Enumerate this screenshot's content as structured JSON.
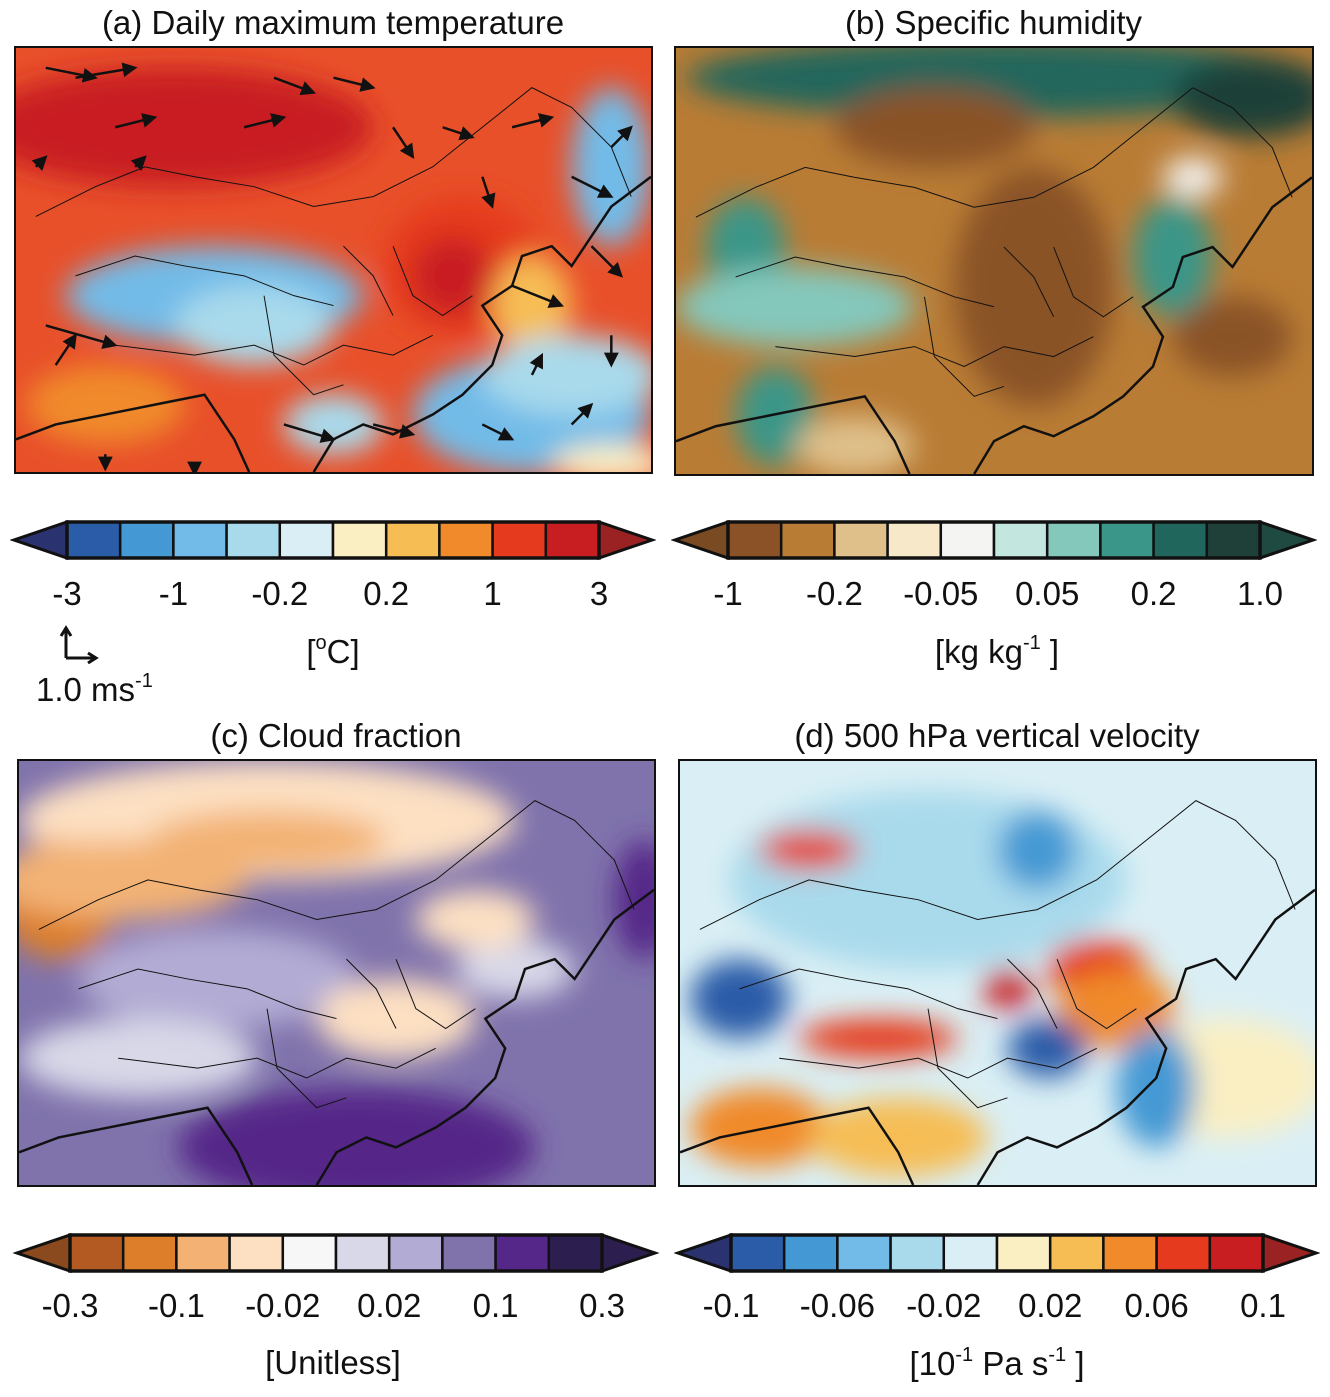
{
  "panels": [
    {
      "id": "a",
      "title": "(a) Daily maximum temperature",
      "unit_open": "[",
      "unit_base": "",
      "unit_sup": "o",
      "unit_rest": "C]",
      "ticks": [
        "-3",
        "-1",
        "-0.2",
        "0.2",
        "1",
        "3"
      ],
      "colors": [
        "#2b3270",
        "#2b5ca8",
        "#4499d4",
        "#72bbe8",
        "#a9daec",
        "#daeff5",
        "#faefc3",
        "#f6bd55",
        "#f08a2a",
        "#e53a1e",
        "#c81e22",
        "#9b2222"
      ],
      "background": "#e8502a"
    },
    {
      "id": "b",
      "title": "(b) Specific humidity",
      "unit_open": "[kg kg",
      "unit_base": "",
      "unit_sup": "-1",
      "unit_rest": " ]",
      "ticks": [
        "-1",
        "-0.2",
        "-0.05",
        "0.05",
        "0.2",
        "1.0"
      ],
      "colors": [
        "#7a4a22",
        "#8a5226",
        "#b97c35",
        "#dfc08a",
        "#f6e8c8",
        "#f4f4f2",
        "#c3e6df",
        "#84c8bc",
        "#3a9688",
        "#21665c",
        "#1f4038",
        "#1e4a42"
      ],
      "background": "#b97c35"
    },
    {
      "id": "c",
      "title": "(c) Cloud fraction",
      "unit_open": "[Unitless]",
      "unit_base": "",
      "unit_sup": "",
      "unit_rest": "",
      "ticks": [
        "-0.3",
        "-0.1",
        "-0.02",
        "0.02",
        "0.1",
        "0.3"
      ],
      "colors": [
        "#8b4a1e",
        "#b35a22",
        "#dd7f2a",
        "#f3b274",
        "#fde0c2",
        "#f7f7f7",
        "#d8d8e8",
        "#b2acd4",
        "#8073ac",
        "#542788",
        "#2d1e50",
        "#2d1e50"
      ],
      "background": "#8073ac"
    },
    {
      "id": "d",
      "title": "(d) 500 hPa vertical velocity",
      "unit_open": "[10",
      "unit_base": "",
      "unit_sup": "-1",
      "unit_rest": " Pa s",
      "unit_sup2": "-1",
      "unit_close": " ]",
      "ticks": [
        "-0.1",
        "-0.06",
        "-0.02",
        "0.02",
        "0.06",
        "0.1"
      ],
      "colors": [
        "#2b3270",
        "#2b5ca8",
        "#4499d4",
        "#72bbe8",
        "#a9daec",
        "#daeff5",
        "#faefc3",
        "#f6bd55",
        "#f08a2a",
        "#e53a1e",
        "#c81e22",
        "#9b2222"
      ],
      "background": "#daeff5"
    }
  ],
  "wind_reference": {
    "label": "1.0 ms",
    "sup": "-1"
  }
}
